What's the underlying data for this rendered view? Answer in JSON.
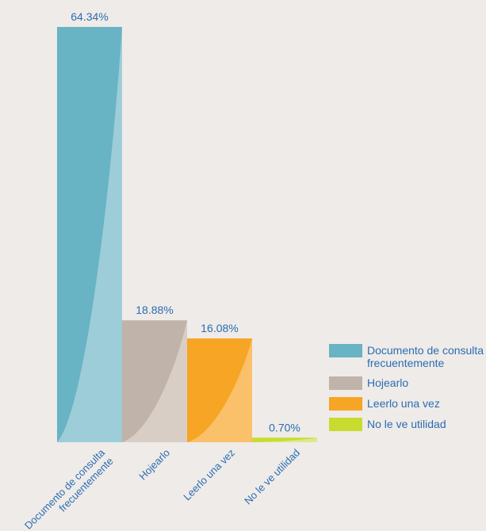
{
  "chart_data": {
    "type": "bar",
    "categories": [
      "Documento de consulta frecuentemente",
      "Hojearlo",
      "Leerlo una vez",
      "No le ve utilidad"
    ],
    "category_lines": [
      [
        "Documento de consulta",
        "frecuentemente"
      ],
      [
        "Hojearlo"
      ],
      [
        "Leerlo una vez"
      ],
      [
        "No le ve utilidad"
      ]
    ],
    "values": [
      64.34,
      18.88,
      16.08,
      0.7
    ],
    "value_labels": [
      "64.34%",
      "18.88%",
      "16.08%",
      "0.70%"
    ],
    "colors": [
      "#68b3c4",
      "#bfb3aa",
      "#f6a524",
      "#c8dc2f"
    ],
    "light_colors": [
      "#9dcdd8",
      "#d8cec6",
      "#fac06a",
      "#dbe98a"
    ],
    "ylim": [
      0,
      64.34
    ],
    "legend_position": "right",
    "grid": false
  },
  "legend": {
    "items": [
      {
        "label": "Documento de consulta frecuentemente",
        "color": "#68b3c4"
      },
      {
        "label": "Hojearlo",
        "color": "#bfb3aa"
      },
      {
        "label": "Leerlo una vez",
        "color": "#f6a524"
      },
      {
        "label": "No le ve utilidad",
        "color": "#c8dc2f"
      }
    ]
  }
}
